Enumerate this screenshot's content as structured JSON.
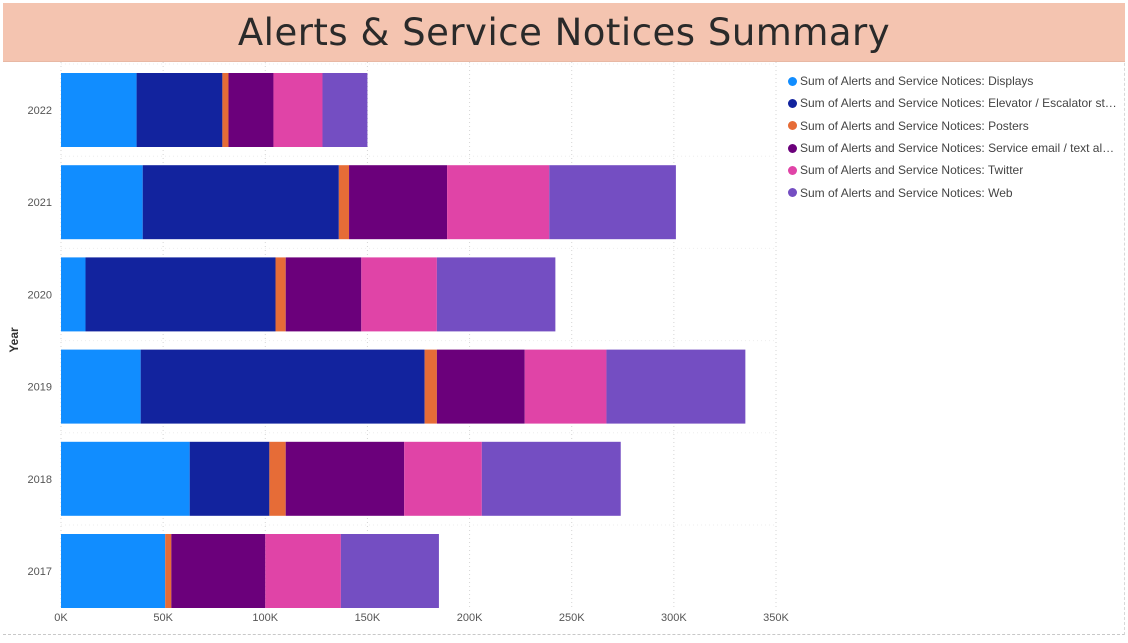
{
  "chart_data": {
    "type": "bar",
    "orientation": "horizontal",
    "stacked": true,
    "title": "Alerts & Service Notices Summary",
    "ylabel": "Year",
    "xlabel": "",
    "categories": [
      "2022",
      "2021",
      "2020",
      "2019",
      "2018",
      "2017"
    ],
    "x_ticks": [
      "0K",
      "50K",
      "100K",
      "150K",
      "200K",
      "250K",
      "300K",
      "350K"
    ],
    "xlim": [
      0,
      350000
    ],
    "grid": true,
    "legend_position": "top-right",
    "series": [
      {
        "name": "Sum of Alerts and Service Notices: Displays",
        "color": "#118dff",
        "values": [
          37000,
          40000,
          12000,
          39000,
          63000,
          51000
        ]
      },
      {
        "name": "Sum of Alerts and Service Notices: Elevator / Escalator status",
        "legend_label": "Sum of Alerts and Service Notices: Elevator / Escalator statu...",
        "color": "#12239e",
        "values": [
          42000,
          96000,
          93000,
          139000,
          39000,
          0
        ]
      },
      {
        "name": "Sum of Alerts and Service Notices: Posters",
        "color": "#e66c37",
        "values": [
          3000,
          5000,
          5000,
          6000,
          8000,
          3000
        ]
      },
      {
        "name": "Sum of Alerts and Service Notices: Service email / text alerts",
        "color": "#6b007b",
        "values": [
          22000,
          48000,
          37000,
          43000,
          58000,
          46000
        ]
      },
      {
        "name": "Sum of Alerts and Service Notices: Twitter",
        "color": "#e044a7",
        "values": [
          24000,
          50000,
          37000,
          40000,
          38000,
          37000
        ]
      },
      {
        "name": "Sum of Alerts and Service Notices: Web",
        "color": "#744ec2",
        "values": [
          22000,
          62000,
          58000,
          68000,
          68000,
          48000
        ]
      }
    ]
  }
}
